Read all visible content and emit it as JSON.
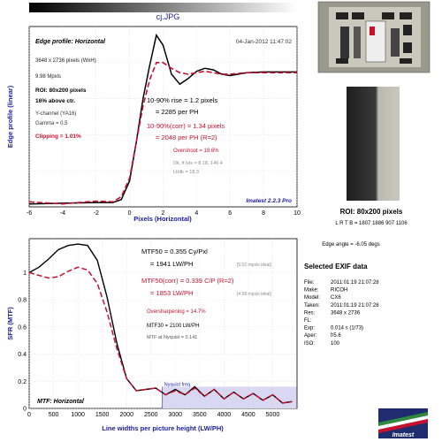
{
  "file_title": "cj.JPG",
  "colors": {
    "black_curve": "#000000",
    "red_curve": "#c8102e",
    "blue_text": "#1a1aa6",
    "red_text": "#c8102e",
    "gray_text": "#8c8c8c",
    "plot_bg": "#ffffff",
    "nyquist_fill": "#d8d8f2"
  },
  "edge_panel": {
    "heading": "Edge profile: Horizontal",
    "timestamp": "04-Jan-2012 11:47:02",
    "info_lines": [
      "3648 x 2736 pixels (WxH)",
      "9.98 Mpxls"
    ],
    "roi_lines": [
      "ROI: 80x200 pixels",
      "16% above ctr."
    ],
    "channel_lines": [
      "Y-channel  (YA16)",
      "Gamma = 0.5"
    ],
    "clipping": "Clipping =   1.01%",
    "rise": "10-90% rise = 1.2 pixels",
    "per_ph": "= 2285 per PH",
    "rise_corr": "10-90%(corr) = 1.34 pixels",
    "per_ph_corr": "= 2048 per PH  (R=2)",
    "overshoot": "Overshoot = 18.6%",
    "dk_lt": "Dk, lt lvls = 8.18, 149.4",
    "ltdk": "Lt/dk = 18.3",
    "version": "Imatest 2.2.3 Pro",
    "ylabel": "Edge profile (linear)",
    "xlabel": "Pixels (Horizontal)"
  },
  "mtf_panel": {
    "mtf50": "MTF50 = 0.355 Cy/Pxl",
    "mtf50_lw": "= 1941 LW/PH",
    "mtf50_ideal": "[5.02 mpxls ideal]",
    "mtf50corr": "MTF50(corr) = 0.339 C/P  (R=2)",
    "mtf50corr_lw": "= 1853 LW/PH",
    "mtf50corr_ideal": "[4.58 mpxls ideal]",
    "oversharpening": "Oversharpening = 14.7%",
    "mtf30": "MTF30 = 2100 LW/PH",
    "nyquist_mtf": "MTF at Nyquist = 0.141",
    "nyquist_label": "Nyquist freq.",
    "title": "MTF: Horizontal",
    "ylabel": "SFR (MTF)",
    "xlabel": "Line widths per picture height (LW/PH)"
  },
  "roi_panel": {
    "title": "ROI: 80x200 pixels",
    "lrtb": "L R T B = 1807 1886  907 1106",
    "edge_angle": "Edge angle = -6.05 degs"
  },
  "exif": {
    "title": "Selected EXIF data",
    "rows": [
      {
        "label": "File:",
        "value": "2011:01:19 21:07:28"
      },
      {
        "label": "Make:",
        "value": "RICOH"
      },
      {
        "label": "Model:",
        "value": "CX6"
      },
      {
        "label": "Taken:",
        "value": "2011:01:19 21:07:28"
      },
      {
        "label": "Res:",
        "value": "3648 x 2736"
      },
      {
        "label": "FL:",
        "value": ""
      },
      {
        "label": "Exp:",
        "value": "0.014 s  (1/73)"
      },
      {
        "label": "Aper:",
        "value": "f/5.6"
      },
      {
        "label": "ISO:",
        "value": "100"
      }
    ]
  },
  "logo_text": "Imatest",
  "chart_data": [
    {
      "type": "line",
      "title": "Edge profile: Horizontal",
      "xlabel": "Pixels (Horizontal)",
      "ylabel": "Edge profile (linear)",
      "xlim": [
        -6,
        10
      ],
      "ylim": [
        0,
        1.25
      ],
      "xticks": [
        -6,
        -4,
        -2,
        0,
        2,
        4,
        6,
        8,
        10
      ],
      "grid": true,
      "series": [
        {
          "x": [
            -6,
            -4,
            -2,
            -1,
            -0.5,
            0,
            0.4,
            0.8,
            1.2,
            1.6,
            2.0,
            2.5,
            3.0,
            3.5,
            4.0,
            4.5,
            5.0,
            5.5,
            6.0,
            7.0,
            8.0,
            9.0,
            10.0
          ],
          "y": [
            0.02,
            0.025,
            0.03,
            0.03,
            0.05,
            0.18,
            0.45,
            0.75,
            0.98,
            1.19,
            1.12,
            0.92,
            0.85,
            0.89,
            0.94,
            0.96,
            0.95,
            0.92,
            0.91,
            0.93,
            0.935,
            0.935,
            0.935
          ]
        },
        {
          "x": [
            -6,
            -4,
            -2,
            -1,
            -0.5,
            0,
            0.4,
            0.8,
            1.2,
            1.6,
            2.0,
            2.5,
            3.0,
            3.5,
            4.0,
            4.5,
            5.0,
            5.5,
            6.0,
            7.0,
            8.0,
            9.0,
            10.0
          ],
          "y": [
            0.035,
            0.02,
            0.04,
            0.035,
            0.07,
            0.2,
            0.45,
            0.7,
            0.88,
            1.0,
            1.0,
            0.96,
            0.93,
            0.92,
            0.93,
            0.94,
            0.93,
            0.92,
            0.92,
            0.93,
            0.93,
            0.93,
            0.93
          ]
        }
      ]
    },
    {
      "type": "line",
      "title": "MTF: Horizontal",
      "xlabel": "Line widths per picture height (LW/PH)",
      "ylabel": "SFR (MTF)",
      "xlim": [
        0,
        5500
      ],
      "ylim": [
        0,
        1.25
      ],
      "xticks": [
        0,
        500,
        1000,
        1500,
        2000,
        2500,
        3000,
        3500,
        4000,
        4500,
        5000
      ],
      "yticks": [
        0,
        0.2,
        0.4,
        0.6,
        0.8,
        1
      ],
      "nyquist_x": 2736,
      "grid": true,
      "series": [
        {
          "x": [
            0,
            200,
            400,
            600,
            800,
            1000,
            1200,
            1400,
            1600,
            1800,
            2000,
            2200,
            2400,
            2600,
            2800,
            3000,
            3200,
            3400,
            3600,
            3800,
            4000,
            4200,
            4400,
            4600,
            4800,
            5000,
            5200,
            5400
          ],
          "y": [
            1.0,
            1.04,
            1.1,
            1.17,
            1.2,
            1.21,
            1.2,
            1.09,
            0.82,
            0.48,
            0.22,
            0.13,
            0.14,
            0.15,
            0.1,
            0.14,
            0.1,
            0.16,
            0.09,
            0.14,
            0.07,
            0.12,
            0.07,
            0.11,
            0.06,
            0.1,
            0.04,
            0.05
          ]
        },
        {
          "x": [
            0,
            200,
            400,
            600,
            800,
            1000,
            1200,
            1400,
            1600,
            1800,
            2000,
            2200,
            2400,
            2600,
            2800,
            3000,
            3200,
            3400,
            3600,
            3800,
            4000,
            4200,
            4400,
            4600,
            4800,
            5000,
            5200,
            5400
          ],
          "y": [
            1.0,
            0.98,
            0.96,
            0.97,
            1.01,
            1.04,
            1.02,
            0.92,
            0.71,
            0.44,
            0.22,
            0.13,
            0.14,
            0.15,
            0.1,
            0.13,
            0.1,
            0.15,
            0.09,
            0.14,
            0.07,
            0.12,
            0.07,
            0.11,
            0.06,
            0.1,
            0.04,
            0.05
          ]
        }
      ]
    }
  ]
}
